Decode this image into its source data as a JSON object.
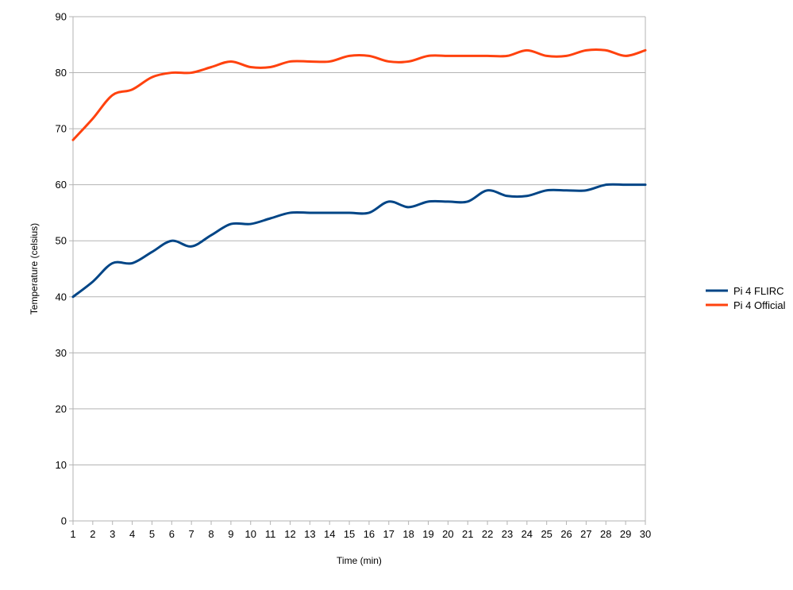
{
  "chart_data": {
    "type": "line",
    "title": "",
    "xlabel": "Time (min)",
    "ylabel": "Temperature (celsius)",
    "x": [
      1,
      2,
      3,
      4,
      5,
      6,
      7,
      8,
      9,
      10,
      11,
      12,
      13,
      14,
      15,
      16,
      17,
      18,
      19,
      20,
      21,
      22,
      23,
      24,
      25,
      26,
      27,
      28,
      29,
      30
    ],
    "xlim": [
      1,
      30
    ],
    "ylim": [
      0,
      90
    ],
    "yticks": [
      0,
      10,
      20,
      30,
      40,
      50,
      60,
      70,
      80,
      90
    ],
    "grid": "horizontal",
    "legend_position": "right",
    "series": [
      {
        "name": "Pi 4 FLIRC",
        "color": "#004586",
        "values": [
          40,
          42.7,
          46,
          46,
          48,
          50,
          49,
          51,
          53,
          53,
          54,
          55,
          55,
          55,
          55,
          55,
          57,
          56,
          57,
          57,
          57,
          59,
          58,
          58,
          59,
          59,
          59,
          60,
          60,
          60
        ]
      },
      {
        "name": "Pi 4 Official",
        "color": "#ff420e",
        "values": [
          68,
          71.8,
          76,
          77,
          79.2,
          80,
          80,
          81,
          82,
          81,
          81,
          82,
          82,
          82,
          83,
          83,
          82,
          82,
          83,
          83,
          83,
          83,
          83,
          84,
          83,
          83,
          84,
          84,
          83,
          84
        ]
      }
    ]
  }
}
